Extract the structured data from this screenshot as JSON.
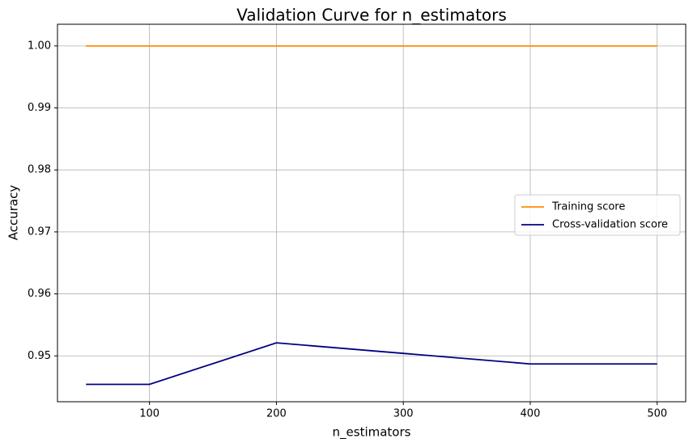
{
  "chart_data": {
    "type": "line",
    "title": "Validation Curve for n_estimators",
    "x_label": "n_estimators",
    "y_label": "Accuracy",
    "x": [
      50,
      100,
      200,
      300,
      400,
      500
    ],
    "series": [
      {
        "name": "Training score",
        "color": "#ff8c00",
        "values": [
          1.0,
          1.0,
          1.0,
          1.0,
          1.0,
          1.0
        ]
      },
      {
        "name": "Cross-validation score",
        "color": "#000080",
        "values": [
          0.9454,
          0.9454,
          0.9521,
          0.9504,
          0.9487,
          0.9487
        ]
      }
    ],
    "xlim": [
      27.5,
      522.5
    ],
    "xticks": [
      100,
      200,
      300,
      400,
      500
    ],
    "ylim": [
      0.9426,
      1.0035
    ],
    "yticks": [
      0.95,
      0.96,
      0.97,
      0.98,
      0.99,
      {
        "value": 1.0,
        "label": "1.00"
      }
    ],
    "grid": true,
    "legend": "center right"
  }
}
